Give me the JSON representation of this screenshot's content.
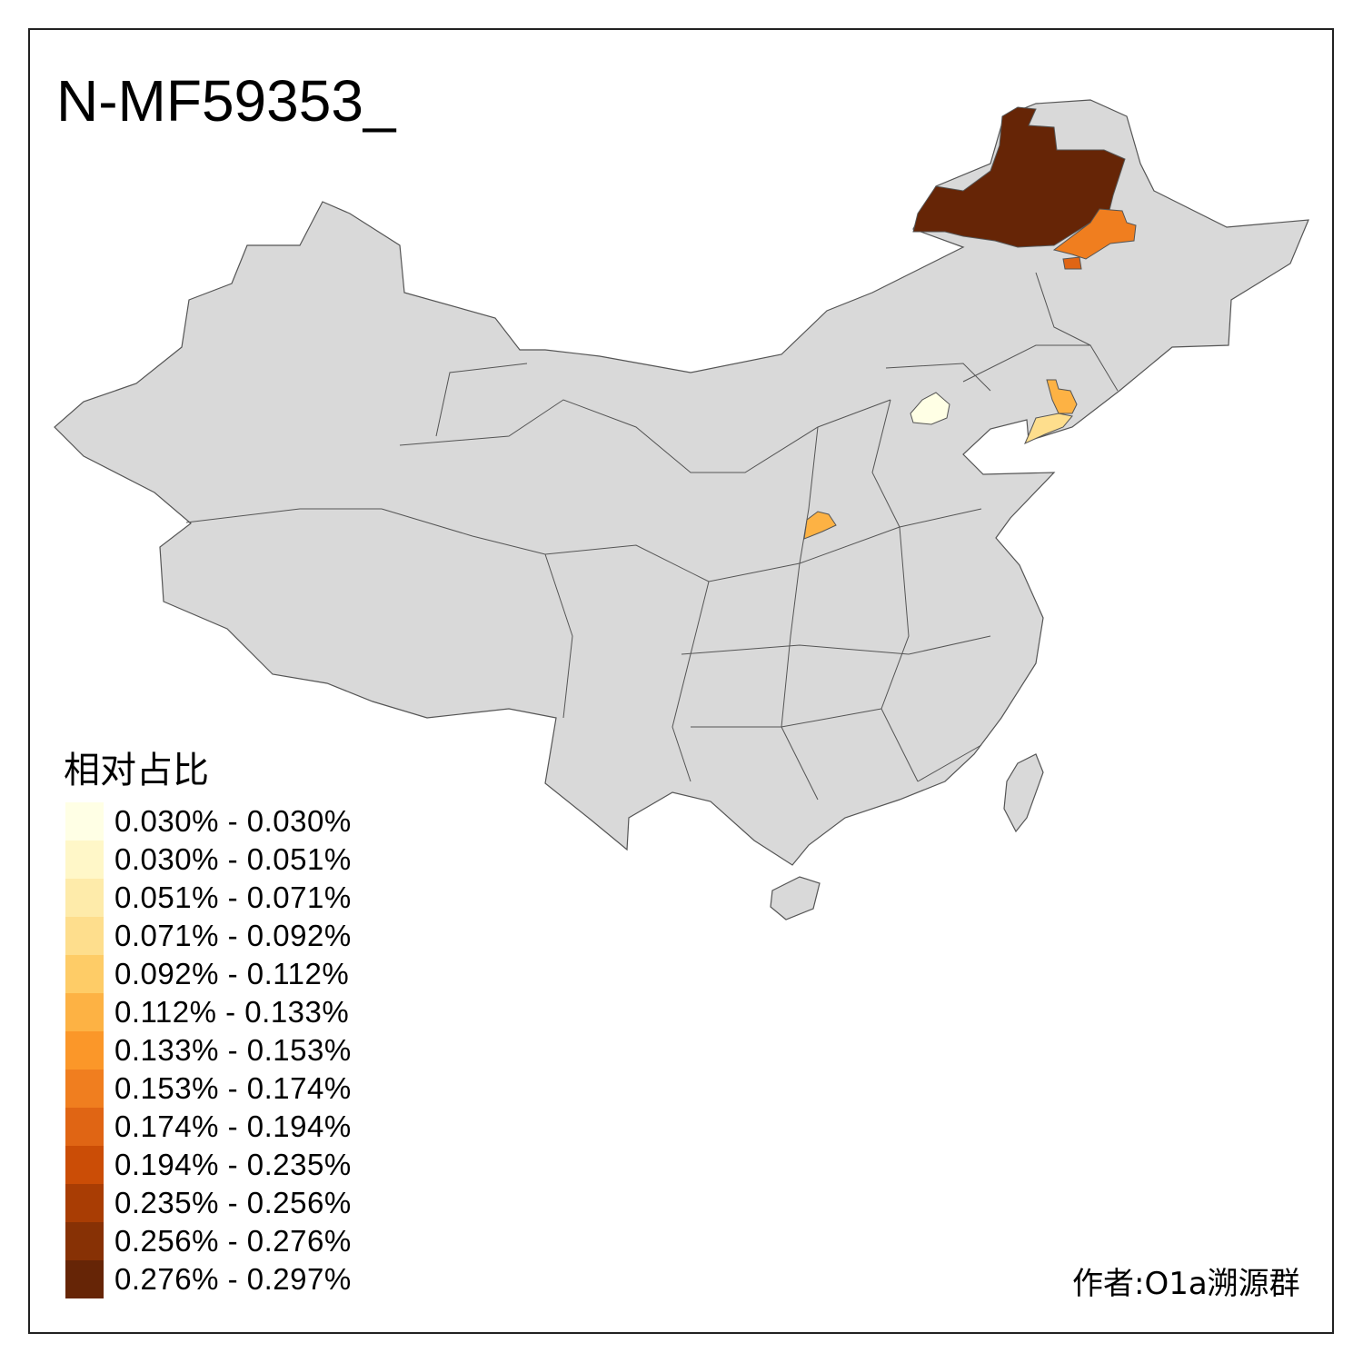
{
  "title": "N-MF59353_",
  "legend": {
    "title": "相对占比",
    "items": [
      {
        "label": "0.030% - 0.030%",
        "color": "#FFFFE5"
      },
      {
        "label": "0.030% - 0.051%",
        "color": "#FFF7C8"
      },
      {
        "label": "0.051% - 0.071%",
        "color": "#FEEBAA"
      },
      {
        "label": "0.071% - 0.092%",
        "color": "#FEDE8D"
      },
      {
        "label": "0.092% - 0.112%",
        "color": "#FECC67"
      },
      {
        "label": "0.112% - 0.133%",
        "color": "#FDB244"
      },
      {
        "label": "0.133% - 0.153%",
        "color": "#FB9729"
      },
      {
        "label": "0.153% - 0.174%",
        "color": "#F07E1F"
      },
      {
        "label": "0.174% - 0.194%",
        "color": "#E06514"
      },
      {
        "label": "0.194% - 0.235%",
        "color": "#CB4D06"
      },
      {
        "label": "0.235% - 0.256%",
        "color": "#A93D04"
      },
      {
        "label": "0.256% - 0.276%",
        "color": "#873105"
      },
      {
        "label": "0.276% - 0.297%",
        "color": "#662506"
      }
    ]
  },
  "map": {
    "base_color": "#D9D9D9",
    "highlighted_regions": [
      {
        "region": "Hulunbuir",
        "color": "#662506"
      },
      {
        "region": "Hinggan",
        "color": "#F07E1F"
      },
      {
        "region": "Baicheng-south",
        "color": "#E06514"
      },
      {
        "region": "Beijing",
        "color": "#FFFFE5"
      },
      {
        "region": "Liaoning-north",
        "color": "#FDB244"
      },
      {
        "region": "Dalian",
        "color": "#FEDE8D"
      },
      {
        "region": "Shanxi-south",
        "color": "#FDB244"
      }
    ]
  },
  "credit": "作者:O1a溯源群"
}
